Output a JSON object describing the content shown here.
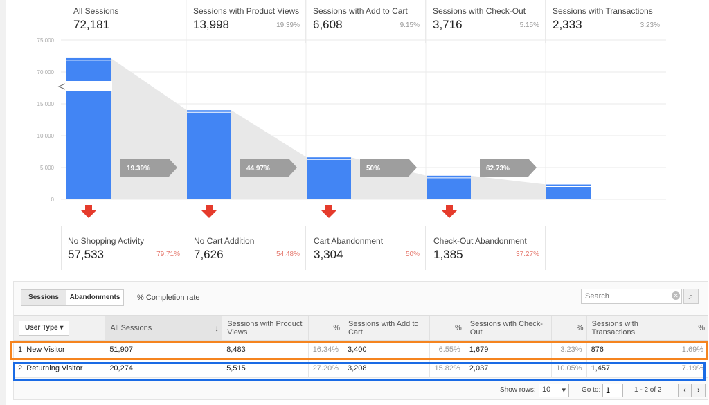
{
  "stages": [
    {
      "label": "All Sessions",
      "value": "72,181",
      "pct": ""
    },
    {
      "label": "Sessions with Product Views",
      "value": "13,998",
      "pct": "19.39%"
    },
    {
      "label": "Sessions with Add to Cart",
      "value": "6,608",
      "pct": "9.15%"
    },
    {
      "label": "Sessions with Check-Out",
      "value": "3,716",
      "pct": "5.15%"
    },
    {
      "label": "Sessions with Transactions",
      "value": "2,333",
      "pct": "3.23%"
    }
  ],
  "chart_data": {
    "type": "bar",
    "categories": [
      "All Sessions",
      "Sessions with Product Views",
      "Sessions with Add to Cart",
      "Sessions with Check-Out",
      "Sessions with Transactions"
    ],
    "values": [
      72181,
      13998,
      6608,
      3716,
      2333
    ],
    "y_ticks": [
      "0",
      "5,000",
      "10,000",
      "15,000",
      "70,000",
      "75,000"
    ],
    "axis_break": true,
    "conversion_rates": [
      "19.39%",
      "44.97%",
      "50%",
      "62.73%"
    ],
    "bar_color": "#4285f4"
  },
  "abandonments": [
    {
      "label": "No Shopping Activity",
      "value": "57,533",
      "pct": "79.71%"
    },
    {
      "label": "No Cart Addition",
      "value": "7,626",
      "pct": "54.48%"
    },
    {
      "label": "Cart Abandonment",
      "value": "3,304",
      "pct": "50%"
    },
    {
      "label": "Check-Out Abandonment",
      "value": "1,385",
      "pct": "37.27%"
    }
  ],
  "toolbar": {
    "sessions_tab": "Sessions",
    "abandonments_tab": "Abandonments",
    "completion": "% Completion rate",
    "search_placeholder": "Search"
  },
  "table": {
    "dimension": "User Type",
    "headers": [
      "All Sessions",
      "Sessions with Product Views",
      "%",
      "Sessions with Add to Cart",
      "%",
      "Sessions with Check-Out",
      "%",
      "Sessions with Transactions",
      "%"
    ],
    "rows": [
      {
        "num": "1",
        "name": "New Visitor",
        "cells": [
          "51,907",
          "8,483",
          "16.34%",
          "3,400",
          "6.55%",
          "1,679",
          "3.23%",
          "876",
          "1.69%"
        ]
      },
      {
        "num": "2",
        "name": "Returning Visitor",
        "cells": [
          "20,274",
          "5,515",
          "27.20%",
          "3,208",
          "15.82%",
          "2,037",
          "10.05%",
          "1,457",
          "7.19%"
        ]
      }
    ]
  },
  "footer": {
    "show_rows": "Show rows:",
    "rows_value": "10",
    "goto": "Go to:",
    "goto_value": "1",
    "range": "1 - 2 of 2"
  },
  "colors": {
    "bar": "#4285f4",
    "arrow": "#e53b2c",
    "highlight_orange": "#f5841f",
    "highlight_blue": "#1a6be5",
    "neg_pct": "#e5786d"
  }
}
